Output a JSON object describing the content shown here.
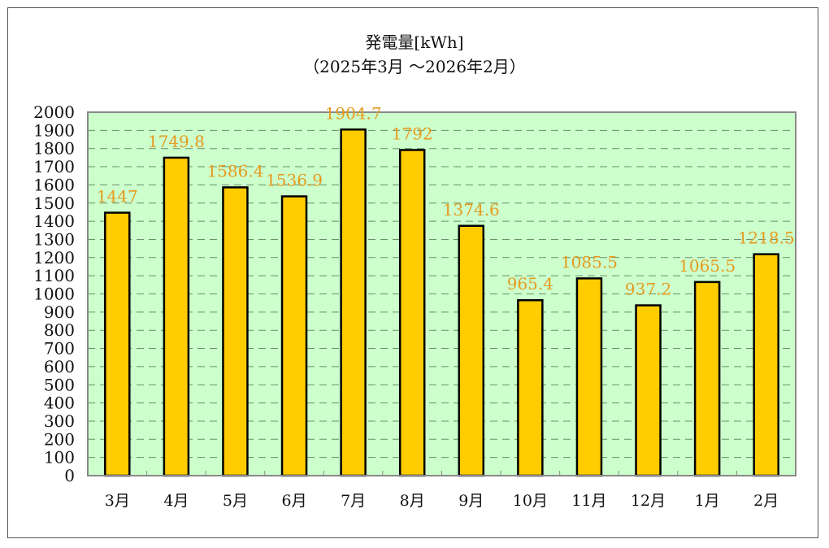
{
  "chart_data": {
    "type": "bar",
    "title": "発電量[kWh]",
    "subtitle": "（2025年3月 ～2026年2月）",
    "categories": [
      "3月",
      "4月",
      "5月",
      "6月",
      "7月",
      "8月",
      "9月",
      "10月",
      "11月",
      "12月",
      "1月",
      "2月"
    ],
    "values": [
      1447,
      1749.8,
      1586.4,
      1536.9,
      1904.7,
      1792,
      1374.6,
      965.4,
      1085.5,
      937.2,
      1065.5,
      1218.5
    ],
    "data_labels": [
      "1447",
      "1749.8",
      "1586.4",
      "1536.9",
      "1904.7",
      "1792",
      "1374.6",
      "965.4",
      "1085.5",
      "937.2",
      "1065.5",
      "1218.5"
    ],
    "xlabel": "",
    "ylabel": "",
    "ylim": [
      0,
      2000
    ],
    "ytick_step": 100,
    "grid": true,
    "legend": "none",
    "colors": {
      "bar": "#FFCC00",
      "bar_edge": "#000000",
      "plot_bg": "#CCFFCC",
      "label": "#E69A1E",
      "grid": "#6a8f6a"
    }
  }
}
